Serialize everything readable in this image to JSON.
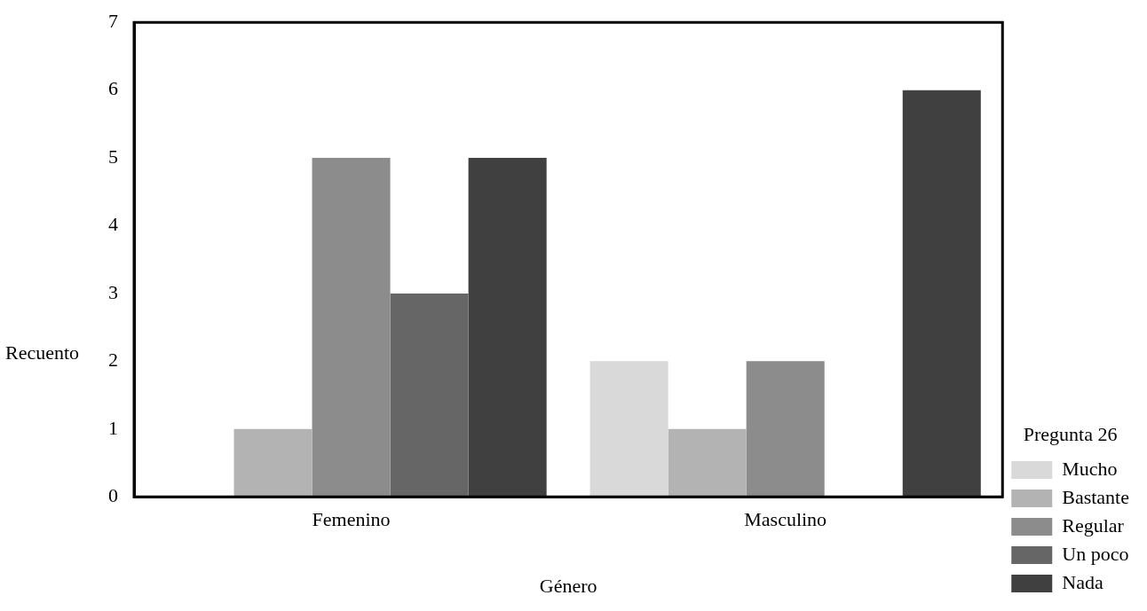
{
  "chart_data": {
    "type": "bar",
    "xlabel": "Género",
    "ylabel": "Recuento",
    "legend_title": "Pregunta 26",
    "categories": [
      "Femenino",
      "Masculino"
    ],
    "series": [
      {
        "name": "Mucho",
        "color": "#d9d9d9",
        "values": [
          0,
          2
        ]
      },
      {
        "name": "Bastante",
        "color": "#b3b3b3",
        "values": [
          1,
          1
        ]
      },
      {
        "name": "Regular",
        "color": "#8c8c8c",
        "values": [
          5,
          2
        ]
      },
      {
        "name": "Un poco",
        "color": "#666666",
        "values": [
          3,
          0
        ]
      },
      {
        "name": "Nada",
        "color": "#404040",
        "values": [
          5,
          6
        ]
      }
    ],
    "ylim": [
      0,
      7
    ],
    "yticks": [
      0,
      1,
      2,
      3,
      4,
      5,
      6,
      7
    ],
    "grid": false,
    "legend": "bottom right"
  }
}
